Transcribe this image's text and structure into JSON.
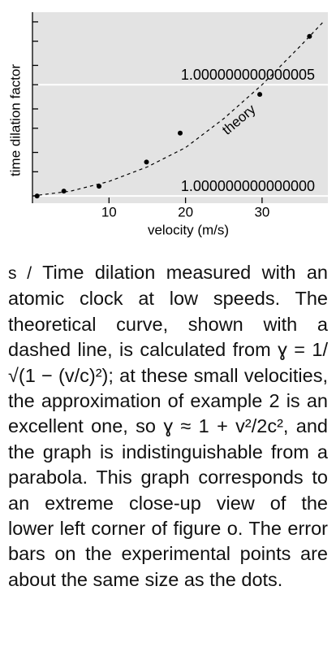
{
  "chart_data": {
    "type": "scatter",
    "xlabel": "velocity (m/s)",
    "ylabel": "time dilation factor",
    "xlim": [
      0,
      38.6
    ],
    "xticks": [
      10,
      20,
      30
    ],
    "ylim": [
      0.9999999999999997,
      1.0000000000000084
    ],
    "yticks": [
      {
        "value": 1,
        "label": "1.000000000000000"
      },
      {
        "value": 1.000000000000005,
        "label": "1.000000000000005"
      }
    ],
    "yminor_ticks": [
      1.000000000000001,
      1.000000000000002,
      1.000000000000003,
      1.000000000000004,
      1.000000000000006,
      1.000000000000007,
      1.000000000000008
    ],
    "grid": true,
    "background": "#e3e3e3",
    "grid_color": "#ffffff",
    "series": [
      {
        "color": "#000000",
        "x": [
          0.6,
          4.1,
          8.7,
          14.9,
          19.3,
          29.7,
          36.2
        ],
        "values": [
          1.0,
          1.0000000000000002,
          1.0000000000000004,
          1.0000000000000016,
          1.0000000000000029,
          1.0000000000000047,
          1.0000000000000073
        ]
      }
    ],
    "theory": {
      "name": "theory",
      "color": "#000000",
      "style": "dashed",
      "x": [
        0,
        5,
        10,
        15,
        20,
        25,
        30,
        35,
        38
      ],
      "values": [
        1,
        1.0000000000000002,
        1.0000000000000007,
        1.0000000000000013,
        1.0000000000000022,
        1.0000000000000036,
        1.000000000000005,
        1.0000000000000069,
        1.000000000000008
      ]
    }
  },
  "caption": {
    "label": "s /",
    "text": "Time dilation measured with an atomic clock at low speeds.  The theoretical curve, shown with a dashed line, is calculated from ɣ = 1/√(1 − (v/c)²); at these small velocities, the approximation of example 2 is an excellent one, so ɣ ≈ 1 + v²/2c², and the graph is indistinguishable from a parabola.  This graph corresponds to an extreme close-up view of the lower left corner of figure o.  The error bars on the experimental points are about the same size as the dots."
  }
}
